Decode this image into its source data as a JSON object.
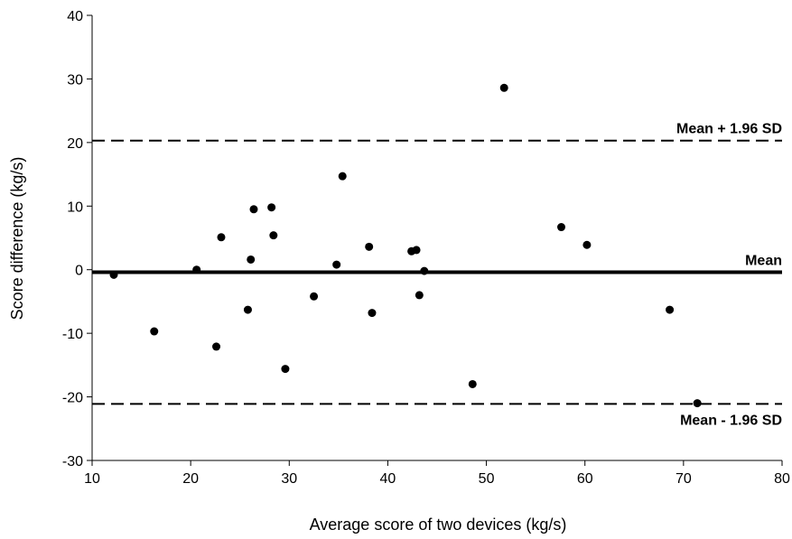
{
  "chart_data": {
    "type": "scatter",
    "title": "",
    "xlabel": "Average score of two devices (kg/s)",
    "ylabel": "Score difference (kg/s)",
    "xlim": [
      10,
      80
    ],
    "ylim": [
      -30,
      40
    ],
    "x_ticks": [
      "10",
      "20",
      "30",
      "40",
      "50",
      "60",
      "70",
      "80"
    ],
    "y_ticks": [
      "-30",
      "-20",
      "-10",
      "0",
      "10",
      "20",
      "30",
      "40"
    ],
    "grid": false,
    "series": [
      {
        "points": [
          {
            "x": 12.2,
            "y": -0.8
          },
          {
            "x": 16.3,
            "y": -9.7
          },
          {
            "x": 20.6,
            "y": 0.0
          },
          {
            "x": 22.6,
            "y": -12.1
          },
          {
            "x": 23.1,
            "y": 5.1
          },
          {
            "x": 25.8,
            "y": -6.3
          },
          {
            "x": 26.1,
            "y": 1.6
          },
          {
            "x": 26.4,
            "y": 9.5
          },
          {
            "x": 28.2,
            "y": 9.8
          },
          {
            "x": 28.4,
            "y": 5.4
          },
          {
            "x": 29.6,
            "y": -15.6
          },
          {
            "x": 32.5,
            "y": -4.2
          },
          {
            "x": 34.8,
            "y": 0.8
          },
          {
            "x": 35.4,
            "y": 14.7
          },
          {
            "x": 38.1,
            "y": 3.6
          },
          {
            "x": 38.4,
            "y": -6.8
          },
          {
            "x": 42.4,
            "y": 2.9
          },
          {
            "x": 42.9,
            "y": 3.1
          },
          {
            "x": 43.2,
            "y": -4.0
          },
          {
            "x": 43.7,
            "y": -0.2
          },
          {
            "x": 48.6,
            "y": -18.0
          },
          {
            "x": 51.8,
            "y": 28.6
          },
          {
            "x": 57.6,
            "y": 6.7
          },
          {
            "x": 60.2,
            "y": 3.9
          },
          {
            "x": 68.6,
            "y": -6.3
          },
          {
            "x": 71.4,
            "y": -21.0
          }
        ]
      }
    ],
    "reference_lines": [
      {
        "label": "Mean + 1.96 SD",
        "y": 20.3,
        "style": "dashed"
      },
      {
        "label": "Mean",
        "y": -0.4,
        "style": "solid"
      },
      {
        "label": "Mean - 1.96 SD",
        "y": -21.1,
        "style": "dashed"
      }
    ],
    "colors": {
      "points": "#000000",
      "lines": "#000000",
      "axes": "#000000"
    }
  }
}
